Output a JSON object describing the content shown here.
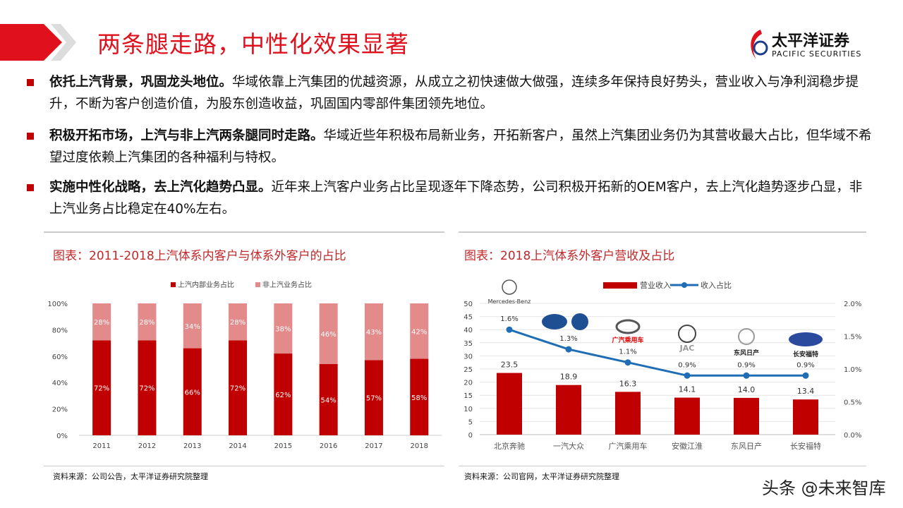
{
  "header": {
    "title": "两条腿走路，中性化效果显著",
    "logo_cn": "太平洋证券",
    "logo_en": "PACIFIC SECURITIES"
  },
  "bullets": [
    {
      "bold": "依托上汽背景，巩固龙头地位。",
      "text": "华域依靠上汽集团的优越资源，从成立之初快速做大做强，连续多年保持良好势头，营业收入与净利润稳步提升，不断为客户创造价值，为股东创造收益，巩固国内零部件集团领先地位。"
    },
    {
      "bold": "积极开拓市场，上汽与非上汽两条腿同时走路。",
      "text": "华域近些年积极布局新业务，开拓新客户，虽然上汽集团业务仍为其营收最大占比，但华域不希望过度依赖上汽集团的各种福利与特权。"
    },
    {
      "bold": "实施中性化战略，去上汽化趋势凸显。",
      "text": "近年来上汽客户业务占比呈现逐年下降态势，公司积极开拓新的OEM客户，去上汽化趋势逐步凸显，非上汽业务占比稳定在40%左右。"
    }
  ],
  "left_panel": {
    "title": "图表：2011-2018上汽体系内客户与体系外客户的占比",
    "source": "资料来源：公司公告，太平洋证券研究院整理"
  },
  "right_panel": {
    "title": "图表：2018上汽体系外客户营收及占比",
    "source": "资料来源：公司官网，太平洋证券研究院整理"
  },
  "watermark": "头条 @未来智库",
  "chart_data": [
    {
      "type": "bar",
      "stacked": true,
      "categories": [
        "2011",
        "2012",
        "2013",
        "2014",
        "2015",
        "2016",
        "2017",
        "2018"
      ],
      "series": [
        {
          "name": "上汽内部业务占比",
          "values": [
            72,
            72,
            66,
            72,
            62,
            54,
            57,
            58
          ],
          "color": "#c00000"
        },
        {
          "name": "非上汽业务占比",
          "values": [
            28,
            28,
            34,
            28,
            38,
            46,
            43,
            42
          ],
          "color": "#e38a8a"
        }
      ],
      "yticks": [
        "0%",
        "20%",
        "40%",
        "60%",
        "80%",
        "100%"
      ],
      "ylim": [
        0,
        100
      ],
      "legend": "top"
    },
    {
      "type": "bar+line",
      "categories": [
        "北京奔驰",
        "一汽大众",
        "广汽乘用车",
        "安徽江淮",
        "东风日产",
        "长安福特"
      ],
      "series": [
        {
          "name": "营业收入",
          "type": "bar",
          "values": [
            23.5,
            18.9,
            16.3,
            14.1,
            14.0,
            13.4
          ],
          "labels": [
            "23.5",
            "18.9",
            "16.3",
            "14.1",
            "14.0",
            "13.4"
          ],
          "color": "#c00000"
        },
        {
          "name": "收入占比",
          "type": "line",
          "axis": "right",
          "values": [
            1.6,
            1.3,
            1.1,
            0.9,
            0.9,
            0.9
          ],
          "labels": [
            "1.6%",
            "1.3%",
            "1.1%",
            "0.9%",
            "0.9%",
            "0.9%"
          ],
          "color": "#1f6db5"
        }
      ],
      "ylim": [
        0,
        50
      ],
      "yticks": [
        "0",
        "5",
        "10",
        "15",
        "20",
        "25",
        "30",
        "35",
        "40",
        "45",
        "50"
      ],
      "y2lim": [
        0,
        2
      ],
      "y2ticks": [
        "0.0%",
        "0.5%",
        "1.0%",
        "1.5%",
        "2.0%"
      ],
      "logos": [
        "Mercedes-Benz 北京奔驰",
        "一汽 / VW",
        "广汽乘用车 GAC MOTOR",
        "JAC",
        "NISSAN 东风日产",
        "Ford 长安福特"
      ],
      "legend": "top"
    }
  ]
}
